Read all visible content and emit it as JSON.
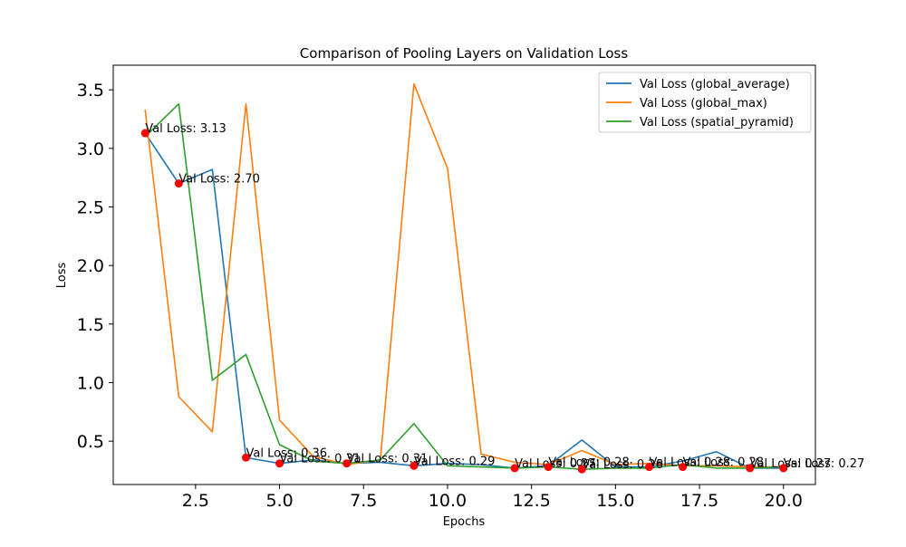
{
  "chart_data": {
    "type": "line",
    "title": "Comparison of Pooling Layers on Validation Loss",
    "xlabel": "Epochs",
    "ylabel": "Loss",
    "xlim": [
      0.05,
      20.95
    ],
    "ylim": [
      0.13,
      3.71
    ],
    "xticks": [
      2.5,
      5.0,
      7.5,
      10.0,
      12.5,
      15.0,
      17.5,
      20.0
    ],
    "xtick_labels": [
      "2.5",
      "5.0",
      "7.5",
      "10.0",
      "12.5",
      "15.0",
      "17.5",
      "20.0"
    ],
    "yticks": [
      0.5,
      1.0,
      1.5,
      2.0,
      2.5,
      3.0,
      3.5
    ],
    "ytick_labels": [
      "0.5",
      "1.0",
      "1.5",
      "2.0",
      "2.5",
      "3.0",
      "3.5"
    ],
    "grid": false,
    "legend_position": "top-right",
    "x": [
      1,
      2,
      3,
      4,
      5,
      6,
      7,
      8,
      9,
      10,
      11,
      12,
      13,
      14,
      15,
      16,
      17,
      18,
      19,
      20
    ],
    "series": [
      {
        "name": "Val Loss (global_average)",
        "color": "#1f77b4",
        "values": [
          3.13,
          2.7,
          2.82,
          0.36,
          0.31,
          0.34,
          0.31,
          0.32,
          0.29,
          0.31,
          0.3,
          0.27,
          0.29,
          0.51,
          0.28,
          0.28,
          0.33,
          0.41,
          0.27,
          0.27
        ]
      },
      {
        "name": "Val Loss (global_max)",
        "color": "#ff7f0e",
        "values": [
          3.33,
          0.88,
          0.58,
          3.38,
          0.68,
          0.37,
          0.3,
          0.34,
          3.55,
          2.83,
          0.39,
          0.32,
          0.3,
          0.42,
          0.3,
          0.31,
          0.29,
          0.29,
          0.28,
          0.28
        ]
      },
      {
        "name": "Val Loss (spatial_pyramid)",
        "color": "#2ca02c",
        "values": [
          3.1,
          3.38,
          1.02,
          1.24,
          0.47,
          0.33,
          0.31,
          0.34,
          0.65,
          0.29,
          0.28,
          0.27,
          0.28,
          0.26,
          0.27,
          0.27,
          0.3,
          0.27,
          0.27,
          0.28
        ]
      }
    ],
    "marker_color": "#ff0000",
    "annotations": [
      {
        "x": 1,
        "y": 3.13,
        "text": "Val Loss: 3.13"
      },
      {
        "x": 2,
        "y": 2.7,
        "text": "Val Loss: 2.70"
      },
      {
        "x": 4,
        "y": 0.36,
        "text": "Val Loss: 0.36"
      },
      {
        "x": 5,
        "y": 0.31,
        "text": "Val Loss: 0.31"
      },
      {
        "x": 7,
        "y": 0.31,
        "text": "Val Loss: 0.31"
      },
      {
        "x": 9,
        "y": 0.29,
        "text": "Val Loss: 0.29"
      },
      {
        "x": 12,
        "y": 0.27,
        "text": "Val Loss: 0.27"
      },
      {
        "x": 13,
        "y": 0.28,
        "text": "Val Loss: 0.28"
      },
      {
        "x": 14,
        "y": 0.26,
        "text": "Val Loss: 0.26"
      },
      {
        "x": 16,
        "y": 0.28,
        "text": "Val Loss: 0.28"
      },
      {
        "x": 17,
        "y": 0.28,
        "text": "Val Loss: 0.28"
      },
      {
        "x": 19,
        "y": 0.27,
        "text": "Val Loss: 0.27"
      },
      {
        "x": 20,
        "y": 0.27,
        "text": "Val Loss: 0.27"
      }
    ]
  }
}
